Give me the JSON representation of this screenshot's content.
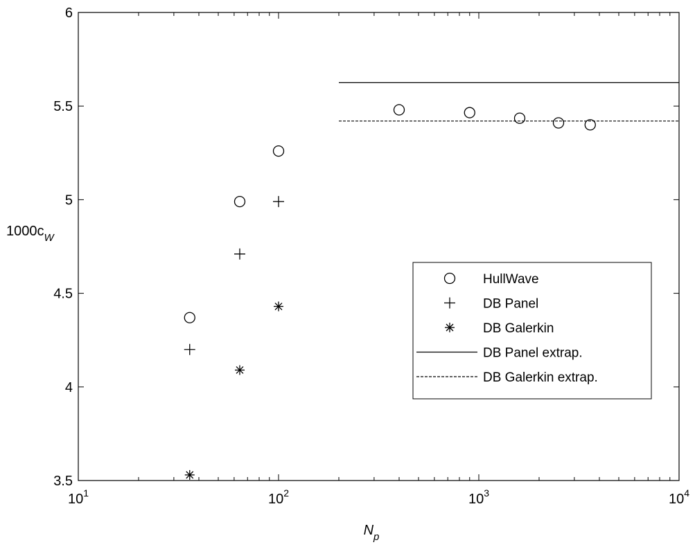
{
  "chart_data": {
    "type": "scatter",
    "x_scale": "log",
    "xlim": [
      10,
      10000
    ],
    "ylim": [
      3.5,
      6
    ],
    "x_ticks": [
      {
        "value": 10,
        "base": "10",
        "exp": "1"
      },
      {
        "value": 100,
        "base": "10",
        "exp": "2"
      },
      {
        "value": 1000,
        "base": "10",
        "exp": "3"
      },
      {
        "value": 10000,
        "base": "10",
        "exp": "4"
      }
    ],
    "y_ticks": [
      {
        "value": 3.5,
        "label": "3.5"
      },
      {
        "value": 4,
        "label": "4"
      },
      {
        "value": 4.5,
        "label": "4.5"
      },
      {
        "value": 5,
        "label": "5"
      },
      {
        "value": 5.5,
        "label": "5.5"
      },
      {
        "value": 6,
        "label": "6"
      }
    ],
    "xlabel": {
      "main": "N",
      "sub": "p"
    },
    "ylabel": {
      "main": "1000c",
      "sub": "W"
    },
    "grid": false,
    "legend_position": "right",
    "series": [
      {
        "name": "HullWave",
        "marker": "circle",
        "points": [
          [
            36,
            4.37
          ],
          [
            64,
            4.99
          ],
          [
            100,
            5.26
          ],
          [
            400,
            5.48
          ],
          [
            900,
            5.465
          ],
          [
            1600,
            5.435
          ],
          [
            2500,
            5.41
          ],
          [
            3600,
            5.4
          ]
        ]
      },
      {
        "name": "DB Panel",
        "marker": "plus",
        "points": [
          [
            36,
            4.2
          ],
          [
            64,
            4.71
          ],
          [
            100,
            4.99
          ]
        ]
      },
      {
        "name": "DB Galerkin",
        "marker": "star",
        "points": [
          [
            36,
            3.53
          ],
          [
            64,
            4.09
          ],
          [
            100,
            4.43
          ]
        ]
      },
      {
        "name": "DB Panel extrap.",
        "marker": "solid-line",
        "points": [
          [
            200,
            5.625
          ],
          [
            10000,
            5.625
          ]
        ]
      },
      {
        "name": "DB Galerkin extrap.",
        "marker": "dashed-line",
        "points": [
          [
            200,
            5.42
          ],
          [
            10000,
            5.42
          ]
        ]
      }
    ]
  }
}
